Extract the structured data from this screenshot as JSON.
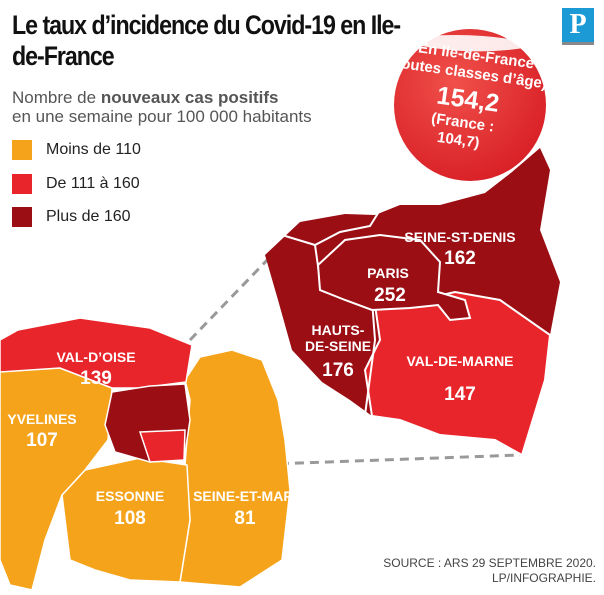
{
  "title": "Le taux d’incidence du Covid-19 en Ile-de-France",
  "subtitle": {
    "pre": "Nombre de ",
    "bold": "nouveaux cas positifs",
    "post": "en une semaine pour 100 000 habitants"
  },
  "legend": [
    {
      "label": "Moins de 110",
      "color": "#f5a31a"
    },
    {
      "label": "De 111 à 160",
      "color": "#e8252b"
    },
    {
      "label": "Plus de 160",
      "color": "#9b0e14"
    }
  ],
  "sticker": {
    "line1": "En Ile-de-France",
    "line2": "(toutes classes d’âge) :",
    "value": "154,2",
    "line3": "(France :",
    "line4": "104,7)"
  },
  "logo": "P",
  "departments": [
    {
      "name": "SEINE-ST-DENIS",
      "value": "162"
    },
    {
      "name": "PARIS",
      "value": "252"
    },
    {
      "name": "HAUTS-",
      "name2": "DE-SEINE",
      "value": "176"
    },
    {
      "name": "VAL-DE-MARNE",
      "value": "147"
    },
    {
      "name": "VAL-D’OISE",
      "value": "139"
    },
    {
      "name": "YVELINES",
      "value": "107"
    },
    {
      "name": "ESSONNE",
      "value": "108"
    },
    {
      "name": "SEINE-ET-MARNE",
      "value": "81"
    }
  ],
  "source": "SOURCE : ARS 29 SEPTEMBRE 2020.",
  "credit": "LP/INFOGRAPHIE."
}
